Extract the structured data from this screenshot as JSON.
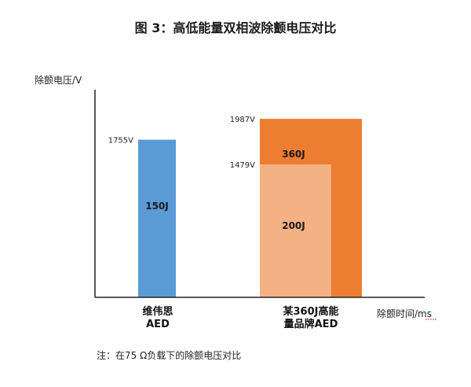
{
  "chart_data": {
    "type": "bar",
    "title": "图 3：高低能量双相波除颤电压对比",
    "ylabel": "除颤电压/V",
    "xlabel": "除颤时间/ms",
    "ylim": [
      0,
      2200
    ],
    "categories": [
      {
        "label_lines": [
          "维伟思",
          "AED"
        ]
      },
      {
        "label_lines": [
          "某360J高能",
          "量品牌AED"
        ]
      }
    ],
    "bars": [
      {
        "category": 0,
        "value": 1755,
        "value_label": "1755V",
        "energy_label": "150J",
        "color": "#5B9BD5"
      },
      {
        "category": 1,
        "value": 1987,
        "value_label": "1987V",
        "energy_label": "360J",
        "color": "#ED7D31"
      },
      {
        "category": 1,
        "value": 1479,
        "value_label": "1479V",
        "energy_label": "200J",
        "color": "#F4B183"
      }
    ],
    "note": "注：在75 Ω负载下的除颤电压对比"
  }
}
